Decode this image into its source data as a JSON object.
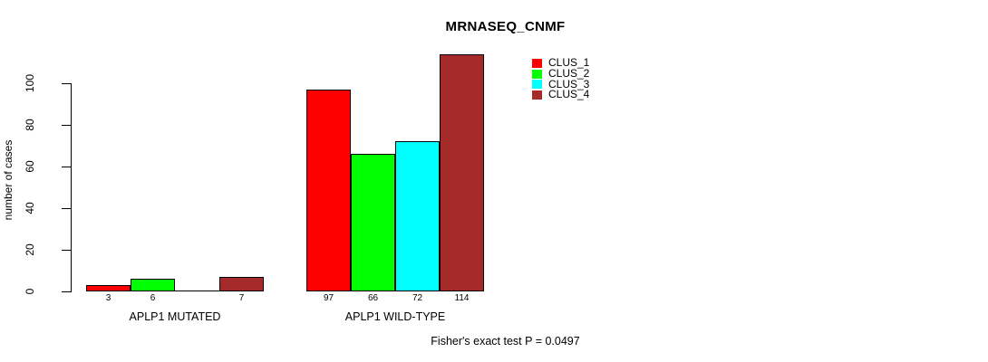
{
  "chart_data": {
    "type": "bar",
    "title": "MRNASEQ_CNMF",
    "ylabel": "number of cases",
    "ylim": [
      0,
      100
    ],
    "yticks": [
      0,
      20,
      40,
      60,
      80,
      100
    ],
    "grid": false,
    "legend_position": "top-right",
    "categories": [
      "APLP1 MUTATED",
      "APLP1 WILD-TYPE"
    ],
    "series": [
      {
        "name": "CLUS_1",
        "color": "#ff0000",
        "values": [
          3,
          97
        ]
      },
      {
        "name": "CLUS_2",
        "color": "#00ff00",
        "values": [
          6,
          66
        ]
      },
      {
        "name": "CLUS_3",
        "color": "#00ffff",
        "values": [
          0,
          72
        ]
      },
      {
        "name": "CLUS_4",
        "color": "#a52a2a",
        "values": [
          7,
          114
        ]
      }
    ],
    "bar_value_labels": [
      [
        "3",
        "6",
        "",
        "7"
      ],
      [
        "97",
        "66",
        "72",
        "114"
      ]
    ],
    "annotation": "Fisher's exact test P = 0.0497"
  }
}
